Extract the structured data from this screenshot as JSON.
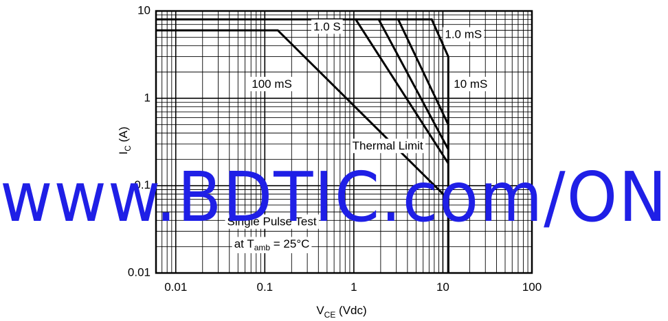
{
  "chart_data": {
    "type": "line",
    "x_scale": "log",
    "y_scale": "log",
    "xlim": [
      0.006,
      100
    ],
    "ylim": [
      0.01,
      10
    ],
    "x_ticks": [
      {
        "value": 0.01,
        "label": "0.01"
      },
      {
        "value": 0.1,
        "label": "0.1"
      },
      {
        "value": 1,
        "label": "1"
      },
      {
        "value": 10,
        "label": "10"
      },
      {
        "value": 100,
        "label": "100"
      }
    ],
    "y_ticks": [
      {
        "value": 0.01,
        "label": "0.01"
      },
      {
        "value": 0.1,
        "label": "0.1"
      },
      {
        "value": 1,
        "label": "1"
      },
      {
        "value": 10,
        "label": "10"
      }
    ],
    "xlabel": {
      "main": "V",
      "sub": "CE",
      "rest": " (Vdc)"
    },
    "ylabel": {
      "main": "I",
      "sub": "C",
      "rest": " (A)"
    },
    "grid": true,
    "series": [
      {
        "name": "1.0 S",
        "x": [
          0.006,
          0.14,
          11.5,
          11.5
        ],
        "y": [
          6.0,
          6.0,
          0.07,
          0.01
        ]
      },
      {
        "name": "100 mS",
        "x": [
          0.006,
          1.05,
          11.5
        ],
        "y": [
          8.0,
          8.0,
          0.18
        ]
      },
      {
        "name": "",
        "x": [
          1.05,
          1.9,
          11.5
        ],
        "y": [
          8.0,
          8.0,
          0.26
        ]
      },
      {
        "name": "",
        "x": [
          1.9,
          3.15,
          11.5
        ],
        "y": [
          8.0,
          8.0,
          0.5
        ]
      },
      {
        "name": "10 mS",
        "x": [
          3.15,
          7.5,
          11.5,
          11.5
        ],
        "y": [
          8.0,
          8.0,
          3.0,
          0.01
        ]
      }
    ],
    "annotations": [
      {
        "text": "1.0 S",
        "x": 0.5,
        "y": 6.5
      },
      {
        "text": "1.0 mS",
        "x": 17,
        "y": 5.3
      },
      {
        "text": "100 mS",
        "x": 0.12,
        "y": 1.43
      },
      {
        "text": "10 mS",
        "x": 20.5,
        "y": 1.43
      },
      {
        "text": "Thermal Limit",
        "x": 2.4,
        "y": 0.28
      },
      {
        "text": "Single Pulse Test",
        "x": 0.12,
        "y": 0.038
      },
      {
        "text_main": "at T",
        "text_sub": "amb",
        "text_rest": " = 25°C",
        "x": 0.12,
        "y": 0.021
      }
    ]
  },
  "watermark": {
    "text": "www.BDTIC.com/ON",
    "color": "#1f1fe6"
  }
}
